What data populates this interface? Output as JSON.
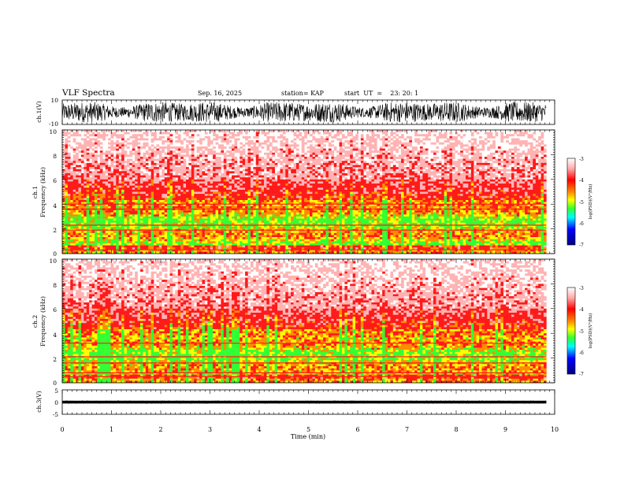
{
  "header": {
    "title": "VLF Spectra",
    "date": "Sep. 16, 2025",
    "station": "station= KAP",
    "start_ut": "start  UT  =    23: 20: 1"
  },
  "chart_data": [
    {
      "type": "line",
      "name": "ch1-waveform",
      "ylabel": "ch.1(V)",
      "ylim": [
        -10,
        10
      ],
      "yticks": [
        "10",
        "-10"
      ],
      "xlim": [
        0,
        10
      ],
      "x_data_end": 9.83,
      "description_values": {
        "approx_min": -9,
        "approx_max": 9
      }
    },
    {
      "type": "heatmap",
      "name": "ch1-spectrogram",
      "ylabel_line1": "ch.1",
      "ylabel_line2": "Frequency (kHz)",
      "ylim": [
        0,
        10
      ],
      "yticks": [
        "0",
        "2",
        "4",
        "6",
        "8",
        "10"
      ],
      "xlim": [
        0,
        10
      ],
      "colorbar": {
        "label": "log(PSD)(V²/Hz)",
        "range": [
          -7,
          -3
        ],
        "ticks": [
          "-3",
          "-4",
          "-5",
          "-6",
          "-7"
        ]
      }
    },
    {
      "type": "heatmap",
      "name": "ch2-spectrogram",
      "ylabel_line1": "ch.2",
      "ylabel_line2": "Frequency (kHz)",
      "ylim": [
        0,
        10
      ],
      "yticks": [
        "0",
        "2",
        "4",
        "6",
        "8",
        "10"
      ],
      "xlim": [
        0,
        10
      ],
      "colorbar": {
        "label": "log(PSD)(V²/Hz)",
        "range": [
          -7,
          -3
        ],
        "ticks": [
          "-3",
          "-4",
          "-5",
          "-6",
          "-7"
        ]
      }
    },
    {
      "type": "line",
      "name": "ch3-waveform",
      "ylabel": "ch.3(V)",
      "ylim": [
        -5,
        5
      ],
      "yticks": [
        "5",
        "0",
        "-5"
      ],
      "xlim": [
        0,
        10
      ],
      "x_data_end": 9.83,
      "description_values": {
        "approx_min": -0.6,
        "approx_max": 0.6
      }
    }
  ],
  "xaxis": {
    "label": "Time (min)",
    "ticks": [
      "0",
      "1",
      "2",
      "3",
      "4",
      "5",
      "6",
      "7",
      "8",
      "9",
      "10"
    ]
  },
  "colors": {
    "background": "#ffffff",
    "axes": "#000000",
    "spec_white": "#ffffff",
    "spec_pink": "#ffb3b3",
    "spec_red": "#ff1a1a",
    "spec_orange": "#ff8c00",
    "spec_yellow": "#ffff00",
    "spec_green": "#33ff33",
    "spec_cyan": "#00ffff",
    "spec_blue": "#0000ff",
    "spec_navy": "#00007f"
  }
}
